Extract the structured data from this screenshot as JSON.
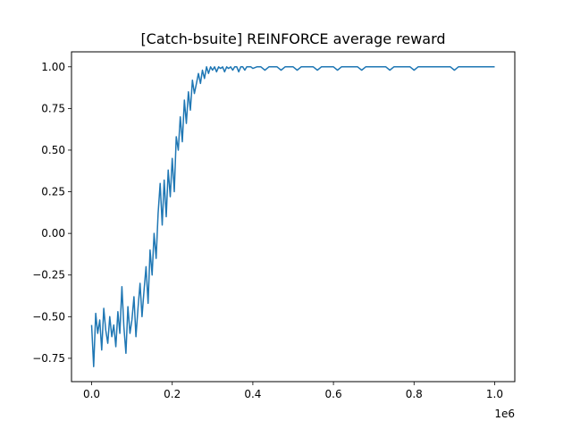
{
  "chart_data": {
    "type": "line",
    "title": "[Catch-bsuite] REINFORCE average reward",
    "xlabel": "",
    "ylabel": "",
    "x_offset_label": "1e6",
    "xlim": [
      -0.05,
      1.05
    ],
    "ylim": [
      -0.89,
      1.09
    ],
    "x_ticks": [
      0.0,
      0.2,
      0.4,
      0.6,
      0.8,
      1.0
    ],
    "x_tick_labels": [
      "0.0",
      "0.2",
      "0.4",
      "0.6",
      "0.8",
      "1.0"
    ],
    "y_ticks": [
      -0.75,
      -0.5,
      -0.25,
      0.0,
      0.25,
      0.5,
      0.75,
      1.0
    ],
    "y_tick_labels": [
      "−0.75",
      "−0.50",
      "−0.25",
      "0.00",
      "0.25",
      "0.50",
      "0.75",
      "1.00"
    ],
    "grid": false,
    "legend": "none",
    "series": [
      {
        "color": "#1f77b4",
        "x": [
          0.0,
          0.005,
          0.01,
          0.015,
          0.02,
          0.025,
          0.03,
          0.035,
          0.04,
          0.045,
          0.05,
          0.055,
          0.06,
          0.065,
          0.07,
          0.075,
          0.08,
          0.085,
          0.09,
          0.095,
          0.1,
          0.105,
          0.11,
          0.115,
          0.12,
          0.125,
          0.13,
          0.135,
          0.14,
          0.145,
          0.15,
          0.155,
          0.16,
          0.165,
          0.17,
          0.175,
          0.18,
          0.185,
          0.19,
          0.195,
          0.2,
          0.205,
          0.21,
          0.215,
          0.22,
          0.225,
          0.23,
          0.235,
          0.24,
          0.245,
          0.25,
          0.255,
          0.26,
          0.265,
          0.27,
          0.275,
          0.28,
          0.285,
          0.29,
          0.295,
          0.3,
          0.305,
          0.31,
          0.315,
          0.32,
          0.325,
          0.33,
          0.335,
          0.34,
          0.345,
          0.35,
          0.355,
          0.36,
          0.365,
          0.37,
          0.375,
          0.38,
          0.385,
          0.39,
          0.395,
          0.4,
          0.41,
          0.42,
          0.43,
          0.44,
          0.45,
          0.46,
          0.47,
          0.48,
          0.49,
          0.5,
          0.51,
          0.52,
          0.53,
          0.54,
          0.55,
          0.56,
          0.57,
          0.58,
          0.59,
          0.6,
          0.61,
          0.62,
          0.63,
          0.64,
          0.65,
          0.66,
          0.67,
          0.68,
          0.69,
          0.7,
          0.71,
          0.72,
          0.73,
          0.74,
          0.75,
          0.76,
          0.77,
          0.78,
          0.79,
          0.8,
          0.81,
          0.82,
          0.83,
          0.84,
          0.85,
          0.86,
          0.87,
          0.88,
          0.89,
          0.9,
          0.91,
          0.92,
          0.93,
          0.94,
          0.95,
          0.96,
          0.97,
          0.98,
          0.99,
          1.0
        ],
        "y": [
          -0.55,
          -0.8,
          -0.48,
          -0.6,
          -0.52,
          -0.7,
          -0.45,
          -0.58,
          -0.66,
          -0.5,
          -0.62,
          -0.55,
          -0.68,
          -0.47,
          -0.6,
          -0.32,
          -0.56,
          -0.72,
          -0.44,
          -0.6,
          -0.52,
          -0.38,
          -0.62,
          -0.45,
          -0.3,
          -0.5,
          -0.34,
          -0.2,
          -0.42,
          -0.1,
          -0.25,
          0.0,
          -0.15,
          0.12,
          0.3,
          0.05,
          0.32,
          0.1,
          0.38,
          0.22,
          0.45,
          0.25,
          0.58,
          0.5,
          0.7,
          0.55,
          0.8,
          0.66,
          0.85,
          0.74,
          0.92,
          0.84,
          0.9,
          0.96,
          0.9,
          0.98,
          0.93,
          1.0,
          0.96,
          1.0,
          0.98,
          1.0,
          0.97,
          1.0,
          0.99,
          1.0,
          0.97,
          1.0,
          0.99,
          1.0,
          0.98,
          1.0,
          1.0,
          0.97,
          1.0,
          1.0,
          0.98,
          1.0,
          1.0,
          1.0,
          0.99,
          1.0,
          1.0,
          0.98,
          1.0,
          1.0,
          1.0,
          0.98,
          1.0,
          1.0,
          1.0,
          0.98,
          1.0,
          1.0,
          1.0,
          1.0,
          0.98,
          1.0,
          1.0,
          1.0,
          1.0,
          0.98,
          1.0,
          1.0,
          1.0,
          1.0,
          1.0,
          0.98,
          1.0,
          1.0,
          1.0,
          1.0,
          1.0,
          1.0,
          0.98,
          1.0,
          1.0,
          1.0,
          1.0,
          1.0,
          0.98,
          1.0,
          1.0,
          1.0,
          1.0,
          1.0,
          1.0,
          1.0,
          1.0,
          1.0,
          0.98,
          1.0,
          1.0,
          1.0,
          1.0,
          1.0,
          1.0,
          1.0,
          1.0,
          1.0,
          1.0
        ]
      }
    ]
  }
}
